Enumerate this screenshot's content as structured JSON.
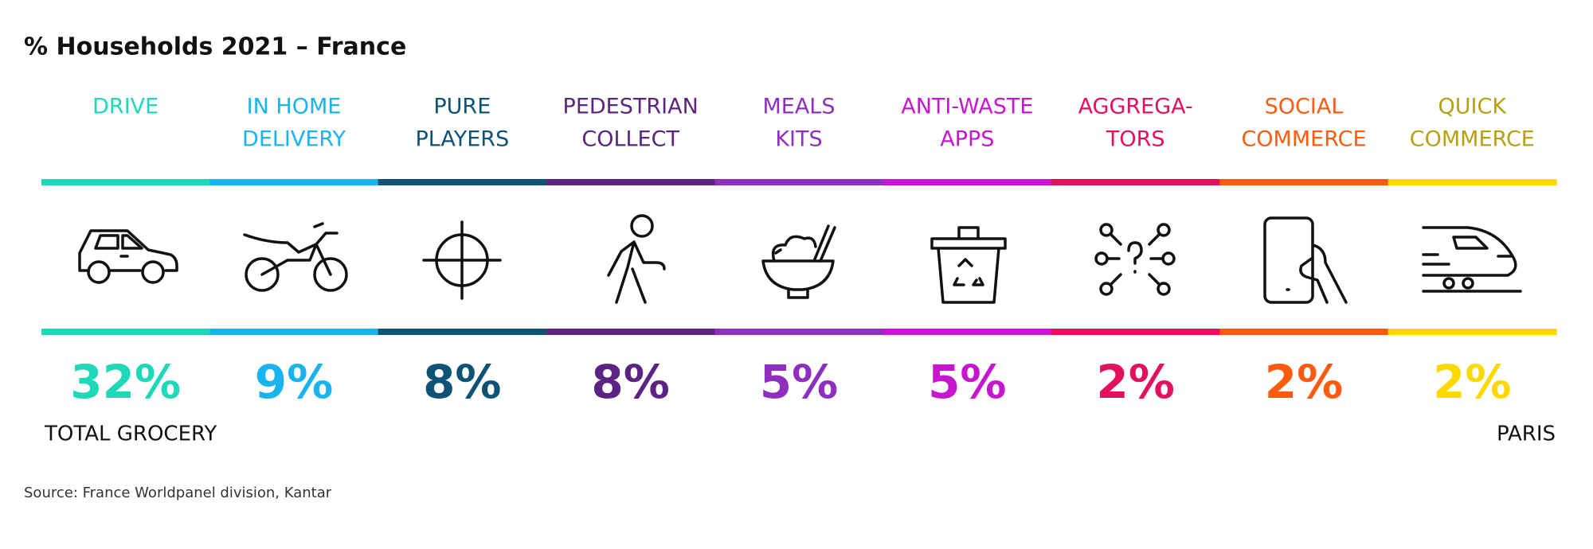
{
  "title": "% Households 2021 – France",
  "columns": [
    {
      "label_lines": [
        "DRIVE"
      ],
      "value": "32%",
      "color": "#1ed8b8"
    },
    {
      "label_lines": [
        "IN HOME",
        "DELIVERY"
      ],
      "value": "9%",
      "color": "#19b4ef"
    },
    {
      "label_lines": [
        "PURE",
        "PLAYERS"
      ],
      "value": "8%",
      "color": "#0e5276"
    },
    {
      "label_lines": [
        "PEDESTRIAN",
        "COLLECT"
      ],
      "value": "8%",
      "color": "#5b2382"
    },
    {
      "label_lines": [
        "MEALS",
        "KITS"
      ],
      "value": "5%",
      "color": "#8e2fc0"
    },
    {
      "label_lines": [
        "ANTI-WASTE",
        "APPS"
      ],
      "value": "5%",
      "color": "#c815d0"
    },
    {
      "label_lines": [
        "AGGREGA-",
        "TORS"
      ],
      "value": "2%",
      "color": "#e3105e"
    },
    {
      "label_lines": [
        "SOCIAL",
        "COMMERCE"
      ],
      "value": "2%",
      "color": "#ff5b10"
    },
    {
      "label_lines": [
        "QUICK",
        "COMMERCE"
      ],
      "value": "2%",
      "color": "#ffd800",
      "label_color": "#b8a014"
    }
  ],
  "note_left": "TOTAL GROCERY",
  "note_right": "PARIS",
  "source": "Source: France Worldpanel division, Kantar"
}
